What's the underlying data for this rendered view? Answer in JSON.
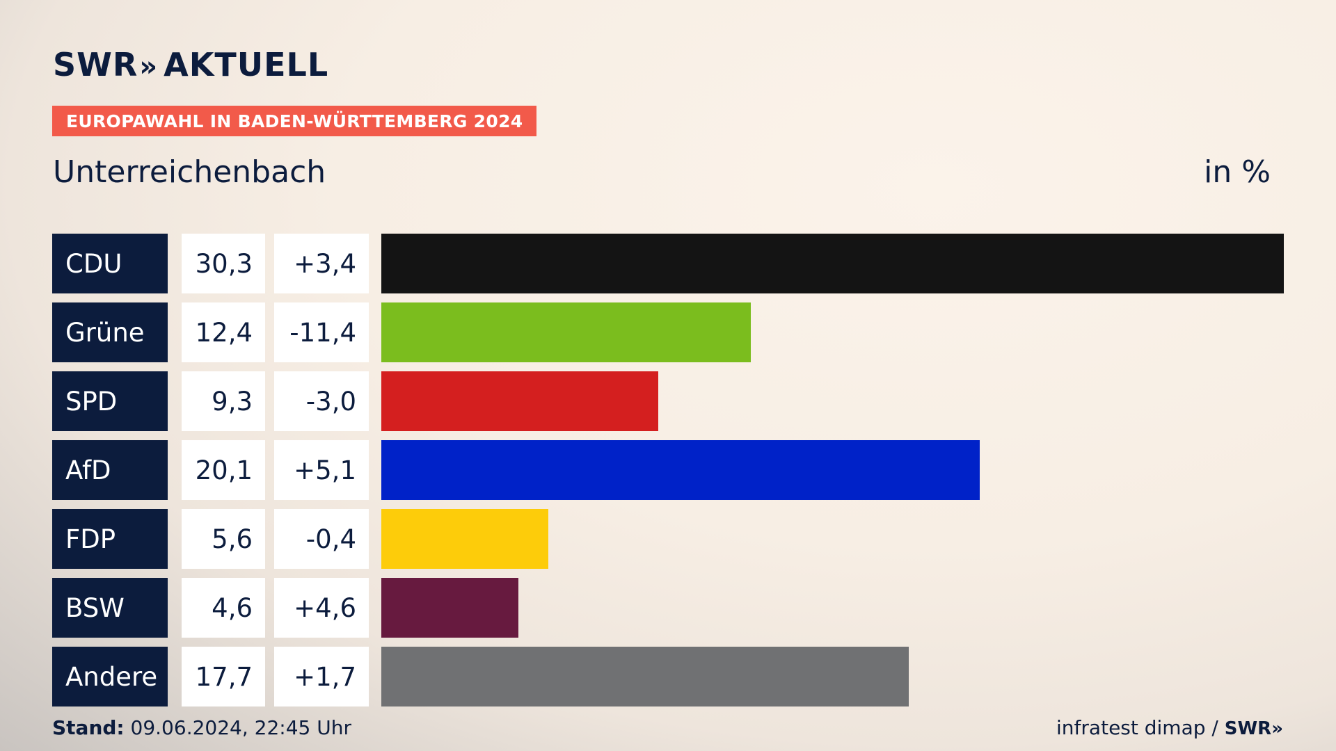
{
  "header": {
    "brand": "SWR",
    "brand_chevrons": "»",
    "brand_suffix": "AKTUELL",
    "tag": "EUROPAWAHL IN BADEN-WÜRTTEMBERG 2024",
    "title": "Unterreichenbach",
    "unit": "in %"
  },
  "footer": {
    "stand_label": "Stand:",
    "stand_value": "09.06.2024, 22:45 Uhr",
    "source": "infratest dimap /",
    "source_brand": "SWR»"
  },
  "chart_data": {
    "type": "bar",
    "orientation": "horizontal",
    "categories": [
      "CDU",
      "Grüne",
      "SPD",
      "AfD",
      "FDP",
      "BSW",
      "Andere"
    ],
    "values": [
      30.3,
      12.4,
      9.3,
      20.1,
      5.6,
      4.6,
      17.7
    ],
    "labels": [
      "30,3",
      "12,4",
      "9,3",
      "20,1",
      "5,6",
      "4,6",
      "17,7"
    ],
    "changes": [
      "+3,4",
      "-11,4",
      "-3,0",
      "+5,1",
      "-0,4",
      "+4,6",
      "+1,7"
    ],
    "colors": [
      "#141414",
      "#7bbd1e",
      "#d41f1f",
      "#0022c8",
      "#fdcc0a",
      "#671a3f",
      "#707173"
    ],
    "title": "Unterreichenbach",
    "ylabel": "in %"
  }
}
